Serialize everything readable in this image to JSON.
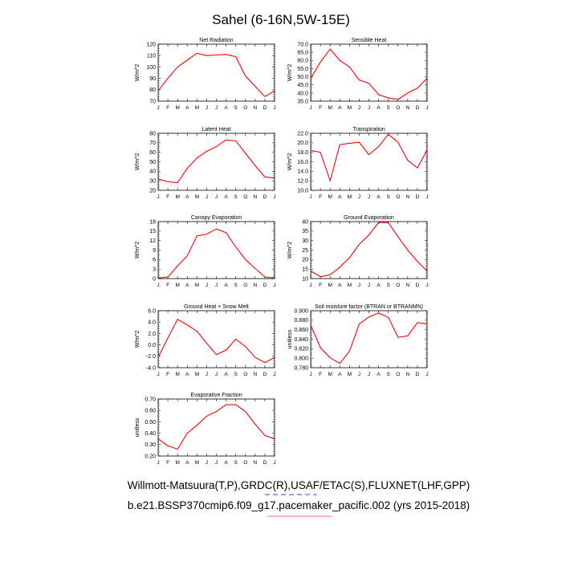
{
  "title": "Sahel (6-16N,5W-15E)",
  "months": [
    "J",
    "F",
    "M",
    "A",
    "M",
    "J",
    "J",
    "A",
    "S",
    "O",
    "N",
    "D",
    "J"
  ],
  "footer": {
    "line1": "Willmott-Matsuura(T,P),GRDC(R),USAF/ETAC(S),FLUXNET(LHF,GPP)",
    "line2": "b.e21.BSSP370cmip6.f09_g17.pacemaker_pacific.002 (yrs 2015-2018)"
  },
  "colors": {
    "series": "#ff0000",
    "axis": "#000000",
    "underline_blue": "#4040c0",
    "underline_red": "#ff6060"
  },
  "chart_data": [
    {
      "type": "line",
      "title": "Net Radiation",
      "ylabel": "W/m^2",
      "ylim": [
        70,
        120
      ],
      "yticks": [
        70,
        80,
        90,
        100,
        110,
        120
      ],
      "ytick_labels": [
        "70",
        "80",
        "90",
        "100",
        "110",
        "120"
      ],
      "values": [
        79,
        90,
        100,
        106,
        112,
        110,
        110.5,
        111,
        109,
        92,
        83,
        74,
        79
      ]
    },
    {
      "type": "line",
      "title": "Sensible Heat",
      "ylabel": "W/m^2",
      "ylim": [
        35,
        70
      ],
      "yticks": [
        35,
        40,
        45,
        50,
        55,
        60,
        65,
        70
      ],
      "ytick_labels": [
        "35.0",
        "40.0",
        "45.0",
        "50.0",
        "55.0",
        "60.0",
        "65.0",
        "70.0"
      ],
      "values": [
        49,
        59,
        67,
        60,
        56,
        48,
        46,
        39,
        37,
        36,
        40,
        43,
        49
      ]
    },
    {
      "type": "line",
      "title": "Latent Heat",
      "ylabel": "W/m^2",
      "ylim": [
        20,
        80
      ],
      "yticks": [
        20,
        30,
        40,
        50,
        60,
        70,
        80
      ],
      "ytick_labels": [
        "20",
        "30",
        "40",
        "50",
        "60",
        "70",
        "80"
      ],
      "values": [
        32,
        29,
        28,
        43,
        54,
        61,
        66,
        73,
        72,
        59,
        46,
        34,
        33
      ]
    },
    {
      "type": "line",
      "title": "Transpiration",
      "ylabel": "W/m^2",
      "ylim": [
        10,
        22
      ],
      "yticks": [
        10,
        12,
        14,
        16,
        18,
        20,
        22
      ],
      "ytick_labels": [
        "10.0",
        "12.0",
        "14.0",
        "16.0",
        "18.0",
        "20.0",
        "22.0"
      ],
      "values": [
        18.4,
        18.0,
        12.0,
        19.6,
        19.9,
        20.1,
        17.5,
        19.2,
        21.8,
        20.1,
        16.3,
        14.7,
        18.5
      ]
    },
    {
      "type": "line",
      "title": "Canopy Evaporation",
      "ylabel": "W/m^2",
      "ylim": [
        0,
        18
      ],
      "yticks": [
        0,
        3,
        6,
        9,
        12,
        15,
        18
      ],
      "ytick_labels": [
        "0",
        "3",
        "6",
        "9",
        "12",
        "15",
        "18"
      ],
      "values": [
        0.2,
        0.5,
        4.0,
        7.2,
        13.5,
        14.0,
        15.7,
        14.5,
        10.0,
        6.0,
        3.2,
        0.5,
        0.2
      ]
    },
    {
      "type": "line",
      "title": "Ground Evaporation",
      "ylabel": "W/m^2",
      "ylim": [
        10,
        40
      ],
      "yticks": [
        10,
        15,
        20,
        25,
        30,
        35,
        40
      ],
      "ytick_labels": [
        "10",
        "15",
        "20",
        "25",
        "30",
        "35",
        "40"
      ],
      "values": [
        14,
        11,
        12,
        16,
        21,
        28,
        33,
        39.5,
        39.5,
        32,
        25,
        19,
        14
      ]
    },
    {
      "type": "line",
      "title": "Ground Heat + Snow Melt",
      "ylabel": "W/m^2",
      "ylim": [
        -4,
        6
      ],
      "yticks": [
        -4,
        -2,
        0,
        2,
        4,
        6
      ],
      "ytick_labels": [
        "-4.0",
        "-2.0",
        "0.0",
        "2.0",
        "4.0",
        "6.0"
      ],
      "values": [
        -2.2,
        1.2,
        4.5,
        3.5,
        2.4,
        0.3,
        -1.7,
        -0.9,
        1.0,
        -0.3,
        -2.2,
        -3.1,
        -2.2
      ]
    },
    {
      "type": "line",
      "title": "Soil moisture factor (BTRAN or BTRANMN)",
      "ylabel": "unitless",
      "ylim": [
        0.78,
        0.9
      ],
      "yticks": [
        0.78,
        0.8,
        0.82,
        0.84,
        0.86,
        0.88,
        0.9
      ],
      "ytick_labels": [
        "0.780",
        "0.800",
        "0.820",
        "0.840",
        "0.860",
        "0.880",
        "0.900"
      ],
      "values": [
        0.87,
        0.822,
        0.801,
        0.789,
        0.815,
        0.872,
        0.887,
        0.895,
        0.886,
        0.844,
        0.847,
        0.875,
        0.872
      ]
    },
    {
      "type": "line",
      "title": "Evaporative Fraction",
      "ylabel": "unitless",
      "ylim": [
        0.2,
        0.7
      ],
      "yticks": [
        0.2,
        0.3,
        0.4,
        0.5,
        0.6,
        0.7
      ],
      "ytick_labels": [
        "0.20",
        "0.30",
        "0.40",
        "0.50",
        "0.60",
        "0.70"
      ],
      "values": [
        0.35,
        0.29,
        0.26,
        0.4,
        0.47,
        0.55,
        0.59,
        0.65,
        0.65,
        0.59,
        0.48,
        0.38,
        0.35
      ]
    }
  ]
}
